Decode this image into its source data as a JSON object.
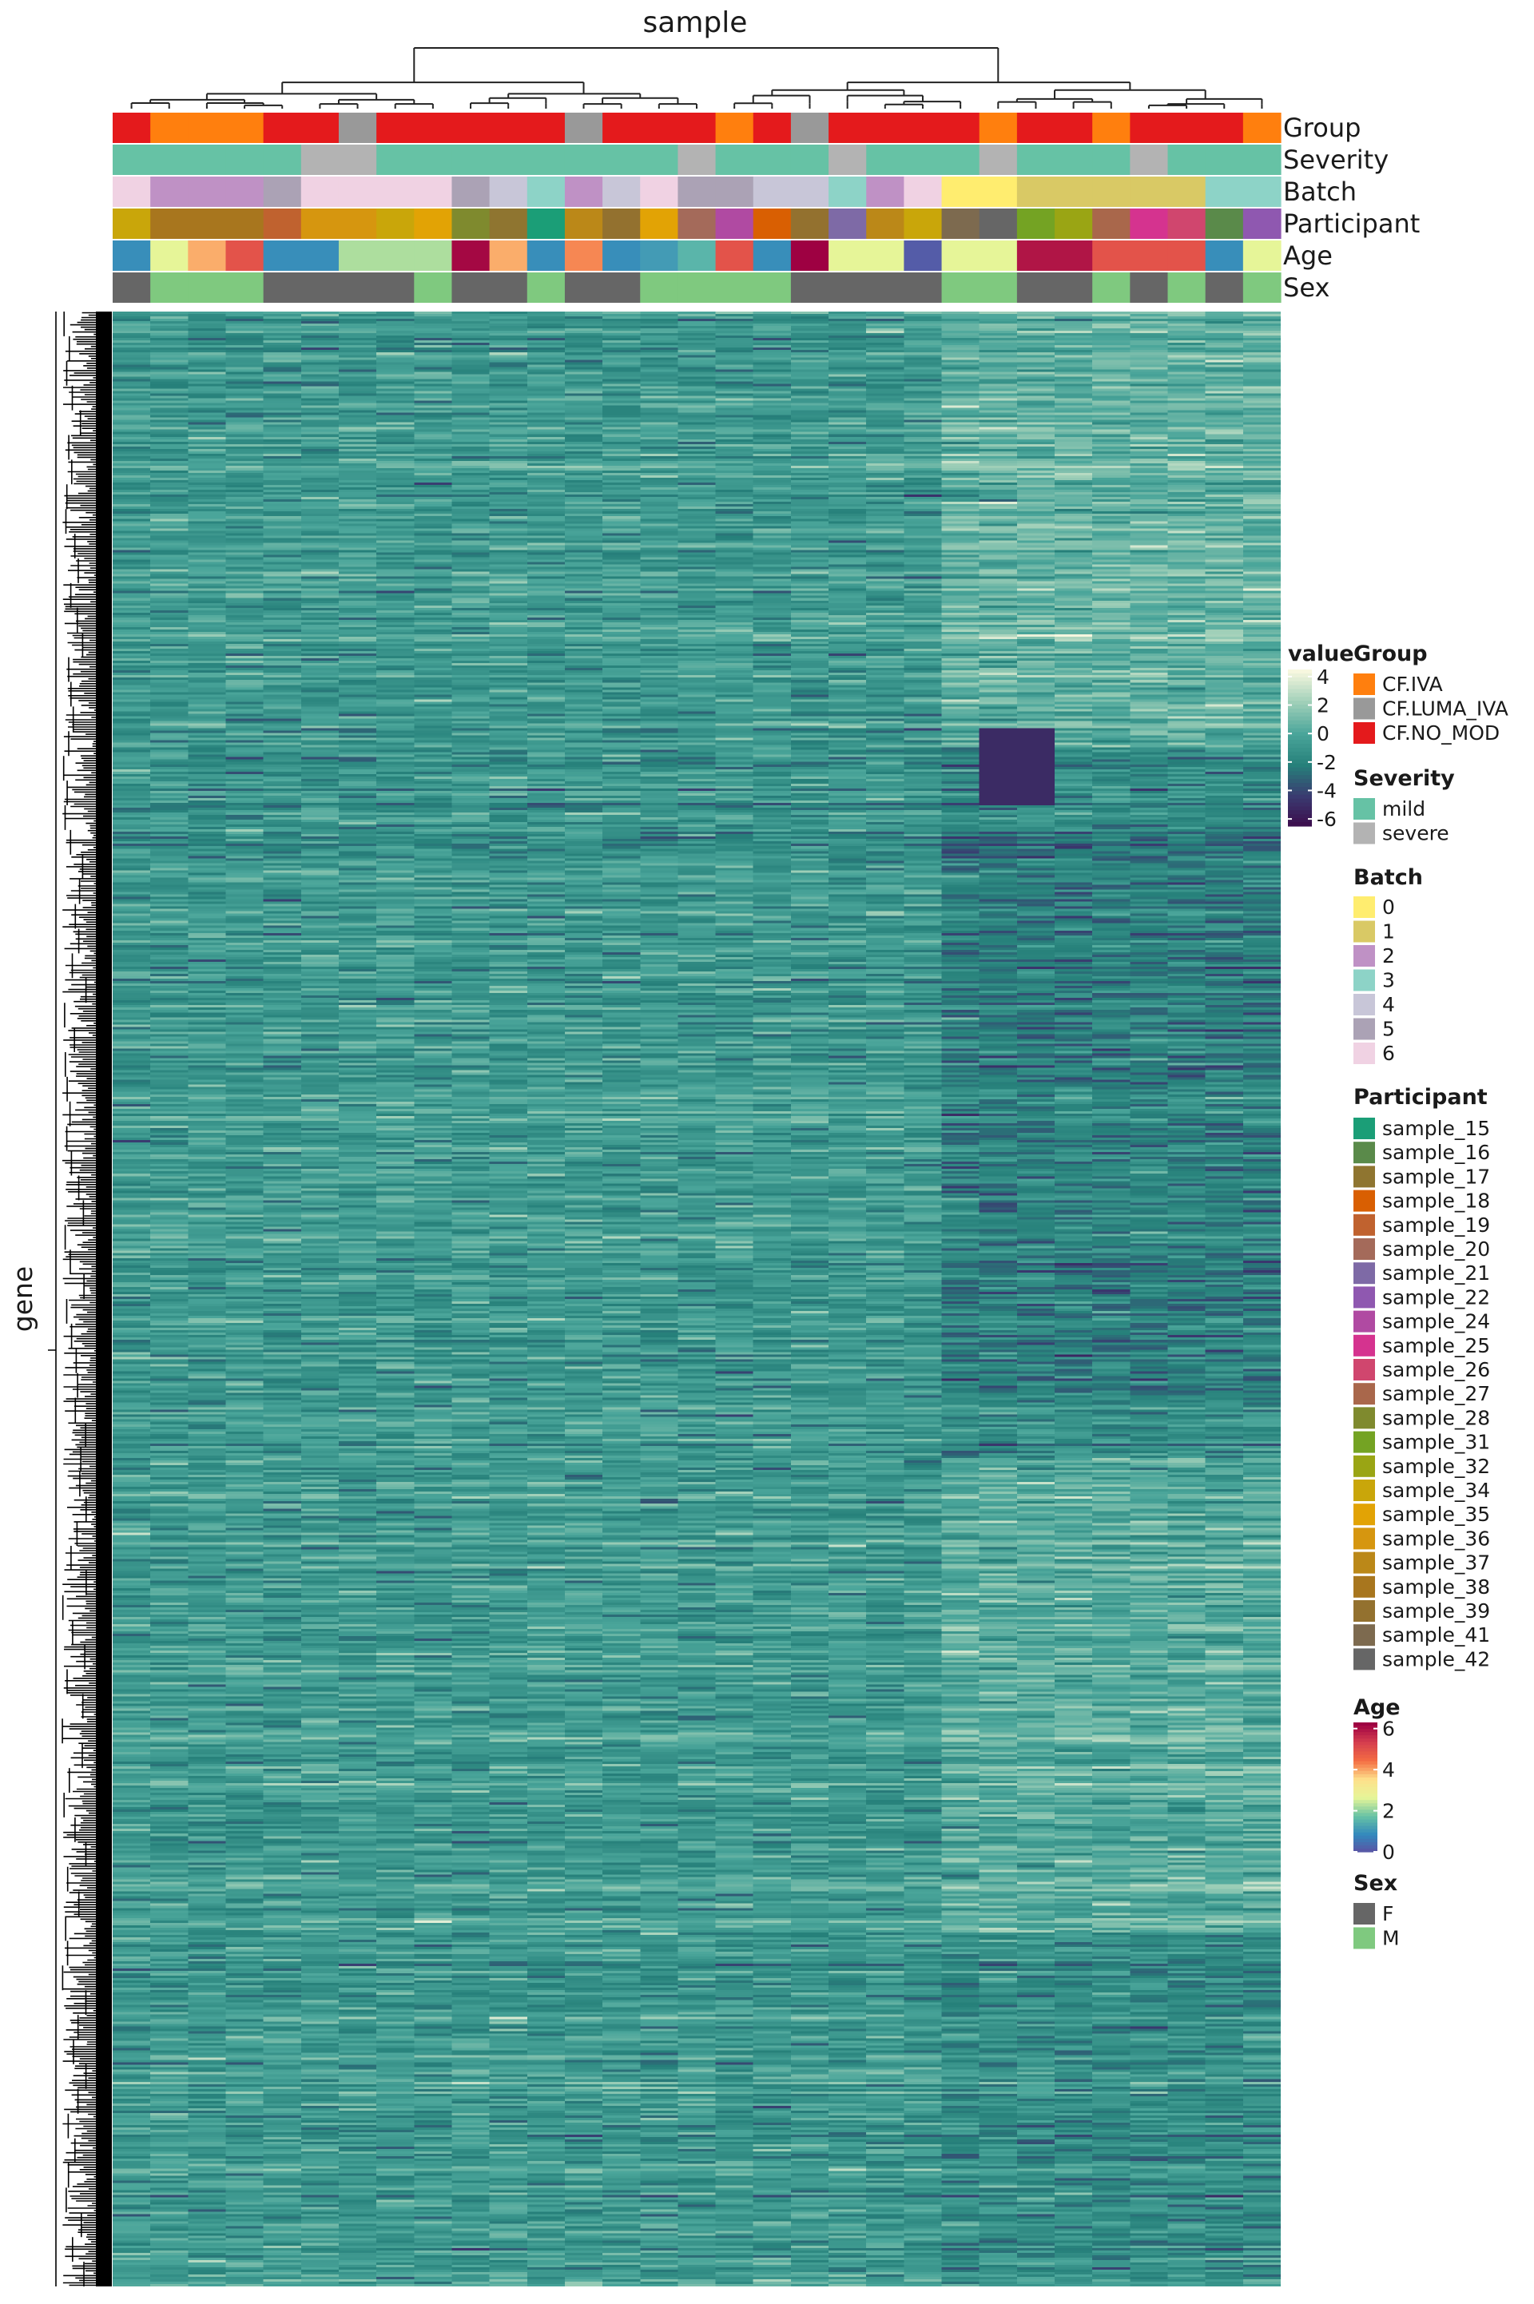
{
  "chart_data": {
    "type": "heatmap",
    "title": "sample",
    "xlabel": "sample",
    "ylabel": "gene",
    "n_samples": 31,
    "value_scale": {
      "title": "value",
      "ticks": [
        4,
        2,
        0,
        -2,
        -4,
        -6
      ],
      "range": [
        -6.5,
        4.5
      ],
      "colors": [
        "#3c0a4a",
        "#3a3a70",
        "#26807a",
        "#4aa59a",
        "#9fcfb8",
        "#f7f7df"
      ]
    },
    "annotation_tracks": [
      "Group",
      "Severity",
      "Batch",
      "Participant",
      "Age",
      "Sex"
    ],
    "legends": {
      "group": {
        "title": "Group",
        "items": [
          {
            "label": "CF.IVA",
            "color": "#ff7f0e"
          },
          {
            "label": "CF.LUMA_IVA",
            "color": "#999999"
          },
          {
            "label": "CF.NO_MOD",
            "color": "#e41a1c"
          }
        ]
      },
      "severity": {
        "title": "Severity",
        "items": [
          {
            "label": "mild",
            "color": "#66c2a5"
          },
          {
            "label": "severe",
            "color": "#b3b3b3"
          }
        ]
      },
      "batch": {
        "title": "Batch",
        "items": [
          {
            "label": "0",
            "color": "#ffed6f"
          },
          {
            "label": "1",
            "color": "#d9c965"
          },
          {
            "label": "2",
            "color": "#bf91c5"
          },
          {
            "label": "3",
            "color": "#8dd3c7"
          },
          {
            "label": "4",
            "color": "#c8c6d8"
          },
          {
            "label": "5",
            "color": "#aba2b5"
          },
          {
            "label": "6",
            "color": "#f0d2e3"
          }
        ]
      },
      "participant": {
        "title": "Participant",
        "items": [
          {
            "label": "sample_15",
            "color": "#1b9e77"
          },
          {
            "label": "sample_16",
            "color": "#5a8a4a"
          },
          {
            "label": "sample_17",
            "color": "#8f7530"
          },
          {
            "label": "sample_18",
            "color": "#d95f02"
          },
          {
            "label": "sample_19",
            "color": "#c0622f"
          },
          {
            "label": "sample_20",
            "color": "#a46a5a"
          },
          {
            "label": "sample_21",
            "color": "#7e6aa6"
          },
          {
            "label": "sample_22",
            "color": "#8f58b0"
          },
          {
            "label": "sample_24",
            "color": "#b04aa2"
          },
          {
            "label": "sample_25",
            "color": "#d5338f"
          },
          {
            "label": "sample_26",
            "color": "#d0466e"
          },
          {
            "label": "sample_27",
            "color": "#a9674b"
          },
          {
            "label": "sample_28",
            "color": "#7f8a2e"
          },
          {
            "label": "sample_31",
            "color": "#74a323"
          },
          {
            "label": "sample_32",
            "color": "#9aa514"
          },
          {
            "label": "sample_34",
            "color": "#c9a60a"
          },
          {
            "label": "sample_35",
            "color": "#e2a305"
          },
          {
            "label": "sample_36",
            "color": "#d6960f"
          },
          {
            "label": "sample_37",
            "color": "#bb8818"
          },
          {
            "label": "sample_38",
            "color": "#a8761e"
          },
          {
            "label": "sample_39",
            "color": "#93712f"
          },
          {
            "label": "sample_41",
            "color": "#7d6a4f"
          },
          {
            "label": "sample_42",
            "color": "#666666"
          }
        ]
      },
      "age": {
        "title": "Age",
        "ticks": [
          6,
          4,
          2,
          0
        ],
        "range": [
          0,
          6.3
        ],
        "colors": [
          "#5e4fa2",
          "#3288bd",
          "#66c2a5",
          "#e6f598",
          "#fee08b",
          "#f46d43",
          "#d53e4f",
          "#9e0142"
        ]
      },
      "sex": {
        "title": "Sex",
        "items": [
          {
            "label": "F",
            "color": "#666666"
          },
          {
            "label": "M",
            "color": "#7fc97f"
          }
        ]
      }
    },
    "tracks": {
      "group": [
        "CF.NO_MOD",
        "CF.IVA",
        "CF.IVA",
        "CF.IVA",
        "CF.NO_MOD",
        "CF.NO_MOD",
        "CF.LUMA_IVA",
        "CF.NO_MOD",
        "CF.NO_MOD",
        "CF.NO_MOD",
        "CF.NO_MOD",
        "CF.NO_MOD",
        "CF.LUMA_IVA",
        "CF.NO_MOD",
        "CF.NO_MOD",
        "CF.NO_MOD",
        "CF.IVA",
        "CF.NO_MOD",
        "CF.LUMA_IVA",
        "CF.NO_MOD",
        "CF.NO_MOD",
        "CF.NO_MOD",
        "CF.NO_MOD",
        "CF.IVA",
        "CF.NO_MOD",
        "CF.NO_MOD",
        "CF.IVA",
        "CF.NO_MOD",
        "CF.NO_MOD",
        "CF.NO_MOD",
        "CF.IVA"
      ],
      "severity": [
        "mild",
        "mild",
        "mild",
        "mild",
        "mild",
        "severe",
        "severe",
        "mild",
        "mild",
        "mild",
        "mild",
        "mild",
        "mild",
        "mild",
        "mild",
        "severe",
        "mild",
        "mild",
        "mild",
        "severe",
        "mild",
        "mild",
        "mild",
        "severe",
        "mild",
        "mild",
        "mild",
        "severe",
        "mild",
        "mild",
        "mild"
      ],
      "batch": [
        "6",
        "2",
        "2",
        "2",
        "5",
        "6",
        "6",
        "6",
        "6",
        "5",
        "4",
        "3",
        "2",
        "4",
        "6",
        "5",
        "5",
        "4",
        "4",
        "3",
        "2",
        "6",
        "0",
        "0",
        "1",
        "1",
        "1",
        "1",
        "1",
        "3",
        "3"
      ],
      "participant": [
        "sample_34",
        "sample_38",
        "sample_38",
        "sample_38",
        "sample_19",
        "sample_36",
        "sample_36",
        "sample_34",
        "sample_35",
        "sample_28",
        "sample_17",
        "sample_15",
        "sample_37",
        "sample_39",
        "sample_35",
        "sample_20",
        "sample_24",
        "sample_18",
        "sample_39",
        "sample_21",
        "sample_37",
        "sample_34",
        "sample_41",
        "sample_42",
        "sample_31",
        "sample_32",
        "sample_27",
        "sample_25",
        "sample_26",
        "sample_16",
        "sample_22"
      ],
      "age": [
        1.0,
        2.7,
        4.0,
        5.0,
        1.0,
        1.0,
        2.3,
        2.3,
        2.3,
        6.2,
        4.0,
        1.0,
        4.3,
        1.0,
        1.2,
        1.6,
        5.0,
        1.0,
        6.3,
        2.7,
        2.7,
        0.2,
        2.7,
        2.7,
        6.0,
        6.0,
        5.0,
        5.0,
        5.0,
        1.0,
        2.7
      ],
      "sex": [
        "F",
        "M",
        "M",
        "M",
        "F",
        "F",
        "F",
        "F",
        "M",
        "F",
        "F",
        "M",
        "F",
        "F",
        "M",
        "M",
        "M",
        "M",
        "F",
        "F",
        "F",
        "F",
        "M",
        "M",
        "F",
        "F",
        "M",
        "F",
        "M",
        "F",
        "M"
      ]
    }
  }
}
